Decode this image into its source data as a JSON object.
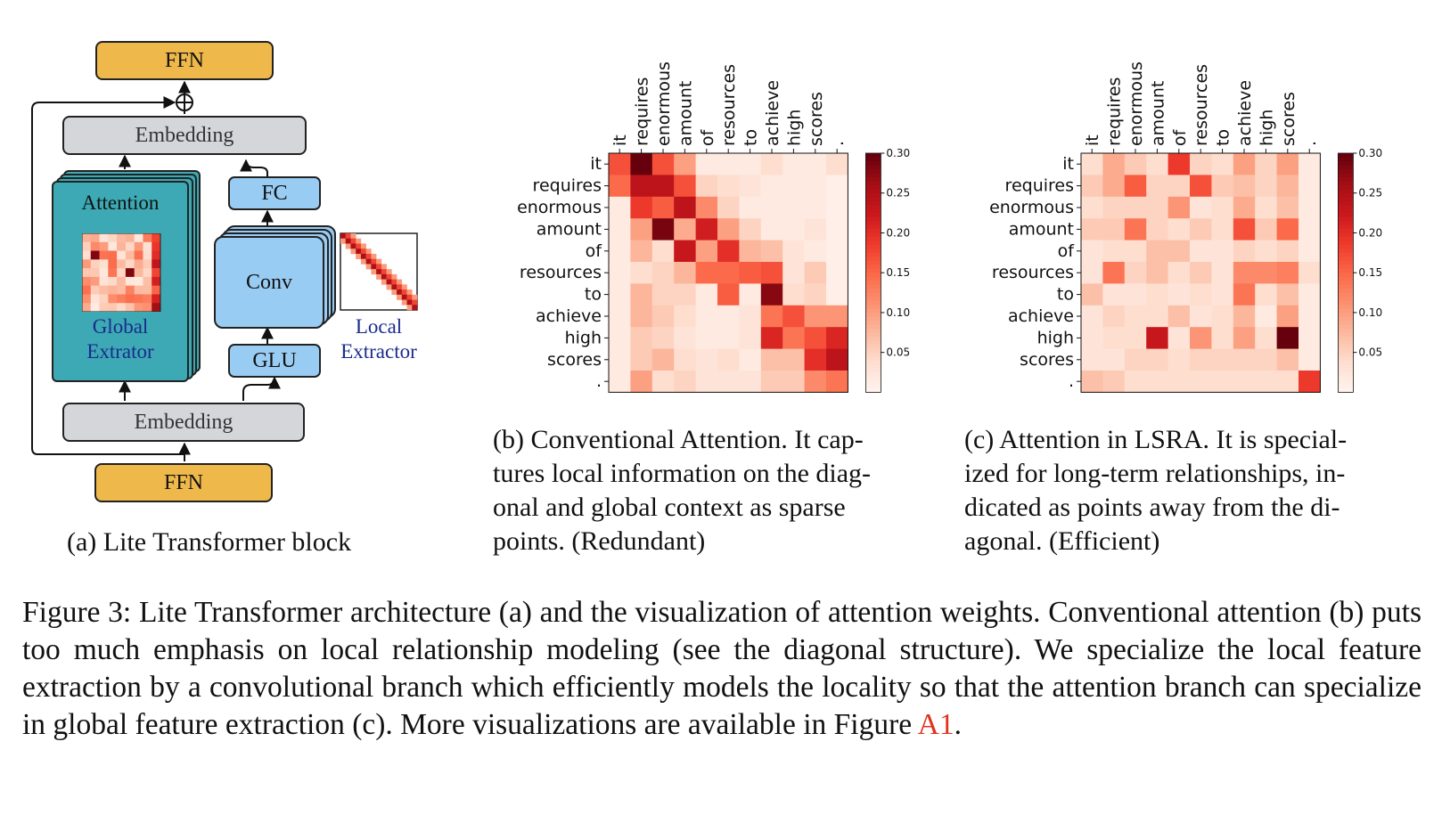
{
  "diagram": {
    "ffn_top": "FFN",
    "ffn_bottom": "FFN",
    "embedding_top": "Embedding",
    "embedding_bottom": "Embedding",
    "attention": "Attention",
    "global_extractor_line1": "Global",
    "global_extractor_line2": "Extrator",
    "fc": "FC",
    "conv": "Conv",
    "glu": "GLU",
    "local_extractor_line1": "Local",
    "local_extractor_line2": "Extractor",
    "plus_symbol": "⊕",
    "caption": "(a) Lite Transformer block"
  },
  "caption_b": "(b) Conventional Attention. It captures local information on the diagonal and global context as sparse points. (Redundant)",
  "caption_b_lines": [
    "(b) Conventional Attention. It cap-",
    "tures local information on the diag-",
    "onal and global context as sparse",
    "points. (Redundant)"
  ],
  "caption_c_lines": [
    "(c) Attention in LSRA. It is special-",
    "ized for long-term relationships, in-",
    "dicated as points away from the di-",
    "agonal. (Efficient)"
  ],
  "figure_caption": {
    "text": "Figure 3: Lite Transformer architecture (a) and the visualization of attention weights. Conventional attention (b) puts too much emphasis on local relationship modeling (see the diagonal structure). We specialize the local feature extraction by a convolutional branch which efficiently models the locality so that the attention branch can specialize in global feature extraction (c). More visualizations are available in Figure ",
    "ref": "A1",
    "end": "."
  },
  "chart_data": [
    {
      "type": "heatmap",
      "title": "Conventional Attention",
      "tokens": [
        "it",
        "requires",
        "enormous",
        "amount",
        "of",
        "resources",
        "to",
        "achieve",
        "high",
        "scores",
        "."
      ],
      "colorbar": {
        "min": 0,
        "max": 0.3,
        "ticks": [
          "0.05",
          "0.10",
          "0.15",
          "0.20",
          "0.25",
          "0.30"
        ]
      },
      "values": [
        [
          0.17,
          0.3,
          0.17,
          0.1,
          0.02,
          0.02,
          0.02,
          0.04,
          0.02,
          0.02,
          0.04
        ],
        [
          0.15,
          0.24,
          0.24,
          0.17,
          0.05,
          0.04,
          0.03,
          0.02,
          0.02,
          0.02,
          0.01
        ],
        [
          0.02,
          0.19,
          0.16,
          0.24,
          0.12,
          0.05,
          0.02,
          0.02,
          0.02,
          0.02,
          0.01
        ],
        [
          0.02,
          0.1,
          0.29,
          0.09,
          0.22,
          0.1,
          0.05,
          0.02,
          0.02,
          0.03,
          0.01
        ],
        [
          0.02,
          0.08,
          0.04,
          0.23,
          0.1,
          0.2,
          0.08,
          0.07,
          0.03,
          0.02,
          0.01
        ],
        [
          0.02,
          0.04,
          0.05,
          0.08,
          0.15,
          0.15,
          0.16,
          0.17,
          0.03,
          0.06,
          0.01
        ],
        [
          0.02,
          0.08,
          0.05,
          0.05,
          0.02,
          0.16,
          0.02,
          0.28,
          0.04,
          0.05,
          0.01
        ],
        [
          0.02,
          0.08,
          0.06,
          0.04,
          0.02,
          0.02,
          0.03,
          0.14,
          0.17,
          0.11,
          0.11
        ],
        [
          0.02,
          0.06,
          0.05,
          0.03,
          0.02,
          0.02,
          0.03,
          0.21,
          0.14,
          0.17,
          0.21
        ],
        [
          0.02,
          0.06,
          0.08,
          0.04,
          0.03,
          0.04,
          0.02,
          0.07,
          0.07,
          0.2,
          0.24
        ],
        [
          0.02,
          0.1,
          0.04,
          0.05,
          0.03,
          0.03,
          0.03,
          0.06,
          0.06,
          0.12,
          0.14
        ]
      ]
    },
    {
      "type": "heatmap",
      "title": "Attention in LSRA",
      "tokens": [
        "it",
        "requires",
        "enormous",
        "amount",
        "of",
        "resources",
        "to",
        "achieve",
        "high",
        "scores",
        "."
      ],
      "colorbar": {
        "min": 0,
        "max": 0.3,
        "ticks": [
          "0.05",
          "0.10",
          "0.15",
          "0.20",
          "0.25",
          "0.30"
        ]
      },
      "values": [
        [
          0.04,
          0.09,
          0.06,
          0.04,
          0.19,
          0.05,
          0.04,
          0.1,
          0.05,
          0.1,
          0.02
        ],
        [
          0.06,
          0.09,
          0.16,
          0.05,
          0.05,
          0.17,
          0.06,
          0.07,
          0.05,
          0.08,
          0.02
        ],
        [
          0.04,
          0.05,
          0.05,
          0.05,
          0.11,
          0.03,
          0.04,
          0.09,
          0.04,
          0.07,
          0.02
        ],
        [
          0.06,
          0.06,
          0.14,
          0.05,
          0.04,
          0.06,
          0.04,
          0.17,
          0.06,
          0.15,
          0.02
        ],
        [
          0.03,
          0.04,
          0.04,
          0.07,
          0.07,
          0.03,
          0.03,
          0.05,
          0.04,
          0.05,
          0.02
        ],
        [
          0.03,
          0.14,
          0.05,
          0.07,
          0.04,
          0.06,
          0.03,
          0.12,
          0.12,
          0.13,
          0.04
        ],
        [
          0.07,
          0.03,
          0.03,
          0.04,
          0.03,
          0.04,
          0.03,
          0.14,
          0.04,
          0.07,
          0.02
        ],
        [
          0.03,
          0.05,
          0.04,
          0.04,
          0.07,
          0.03,
          0.04,
          0.08,
          0.02,
          0.1,
          0.02
        ],
        [
          0.03,
          0.04,
          0.04,
          0.23,
          0.03,
          0.11,
          0.04,
          0.1,
          0.04,
          0.3,
          0.02
        ],
        [
          0.03,
          0.03,
          0.05,
          0.05,
          0.04,
          0.05,
          0.05,
          0.05,
          0.05,
          0.07,
          0.02
        ],
        [
          0.07,
          0.06,
          0.04,
          0.04,
          0.04,
          0.04,
          0.04,
          0.04,
          0.04,
          0.04,
          0.19
        ]
      ]
    }
  ]
}
